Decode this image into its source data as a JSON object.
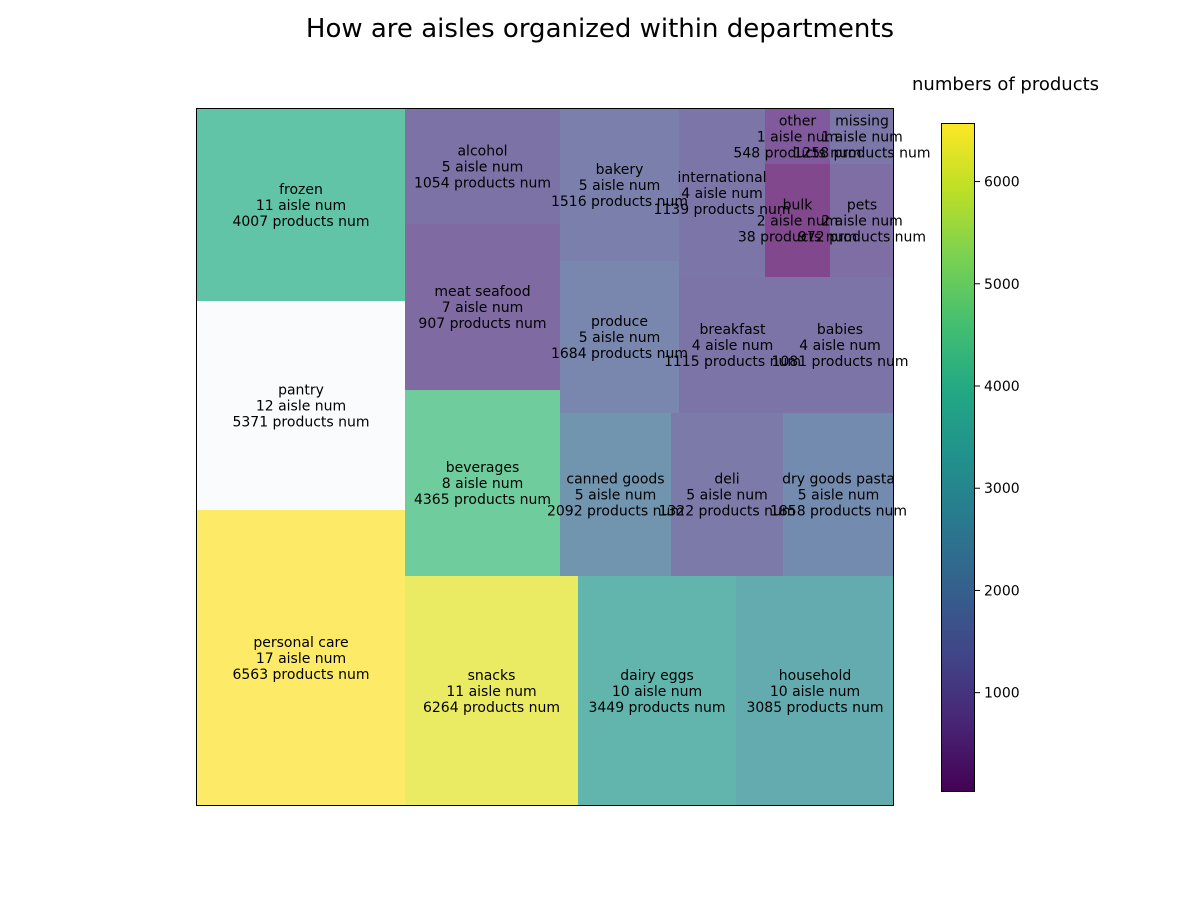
{
  "chart_data": {
    "type": "treemap",
    "title": "How are aisles organized within departments",
    "colorbar": {
      "label": "numbers of products",
      "range": [
        38,
        6563
      ],
      "ticks": [
        1000,
        2000,
        3000,
        4000,
        5000,
        6000
      ],
      "colormap": "viridis"
    },
    "items": [
      {
        "name": "frozen",
        "aisle_text": "11 aisle num",
        "products_text": "4007 products num",
        "products": 4007,
        "color": "#62c4a6"
      },
      {
        "name": "pantry",
        "aisle_text": "12 aisle num",
        "products_text": "5371 products num",
        "products": 5371,
        "color": "#fafbfd"
      },
      {
        "name": "personal care",
        "aisle_text": "17 aisle num",
        "products_text": "6563 products num",
        "products": 6563,
        "color": "#fdeb68"
      },
      {
        "name": "alcohol",
        "aisle_text": "5 aisle num",
        "products_text": "1054 products num",
        "products": 1054,
        "color": "#7c72a6"
      },
      {
        "name": "meat seafood",
        "aisle_text": "7 aisle num",
        "products_text": "907 products num",
        "products": 907,
        "color": "#7f6ba2"
      },
      {
        "name": "beverages",
        "aisle_text": "8 aisle num",
        "products_text": "4365 products num",
        "products": 4365,
        "color": "#6fcc9d"
      },
      {
        "name": "bakery",
        "aisle_text": "5 aisle num",
        "products_text": "1516 products num",
        "products": 1516,
        "color": "#7a80ab"
      },
      {
        "name": "produce",
        "aisle_text": "5 aisle num",
        "products_text": "1684 products num",
        "products": 1684,
        "color": "#7986ad"
      },
      {
        "name": "international",
        "aisle_text": "4 aisle num",
        "products_text": "1139 products num",
        "products": 1139,
        "color": "#7c75a7"
      },
      {
        "name": "other",
        "aisle_text": "1 aisle num",
        "products_text": "548 products num",
        "products": 548,
        "color": "#805a9c"
      },
      {
        "name": "missing",
        "aisle_text": "1 aisle num",
        "products_text": "1258 products num",
        "products": 1258,
        "color": "#7b77a8"
      },
      {
        "name": "bulk",
        "aisle_text": "2 aisle num",
        "products_text": "38 products num",
        "products": 38,
        "color": "#81488d"
      },
      {
        "name": "pets",
        "aisle_text": "2 aisle num",
        "products_text": "972 products num",
        "products": 972,
        "color": "#7e6ea3"
      },
      {
        "name": "breakfast",
        "aisle_text": "4 aisle num",
        "products_text": "1115 products num",
        "products": 1115,
        "color": "#7c74a6"
      },
      {
        "name": "babies",
        "aisle_text": "4 aisle num",
        "products_text": "1081 products num",
        "products": 1081,
        "color": "#7c73a6"
      },
      {
        "name": "canned goods",
        "aisle_text": "5 aisle num",
        "products_text": "2092 products num",
        "products": 2092,
        "color": "#7195ae"
      },
      {
        "name": "deli",
        "aisle_text": "5 aisle num",
        "products_text": "1322 products num",
        "products": 1322,
        "color": "#7b7aa8"
      },
      {
        "name": "dry goods pasta",
        "aisle_text": "5 aisle num",
        "products_text": "1858 products num",
        "products": 1858,
        "color": "#738bae"
      },
      {
        "name": "snacks",
        "aisle_text": "11 aisle num",
        "products_text": "6264 products num",
        "products": 6264,
        "color": "#ebeb63"
      },
      {
        "name": "dairy eggs",
        "aisle_text": "10 aisle num",
        "products_text": "3449 products num",
        "products": 3449,
        "color": "#61b5ad"
      },
      {
        "name": "household",
        "aisle_text": "10 aisle num",
        "products_text": "3085 products num",
        "products": 3085,
        "color": "#63abaf"
      }
    ]
  }
}
